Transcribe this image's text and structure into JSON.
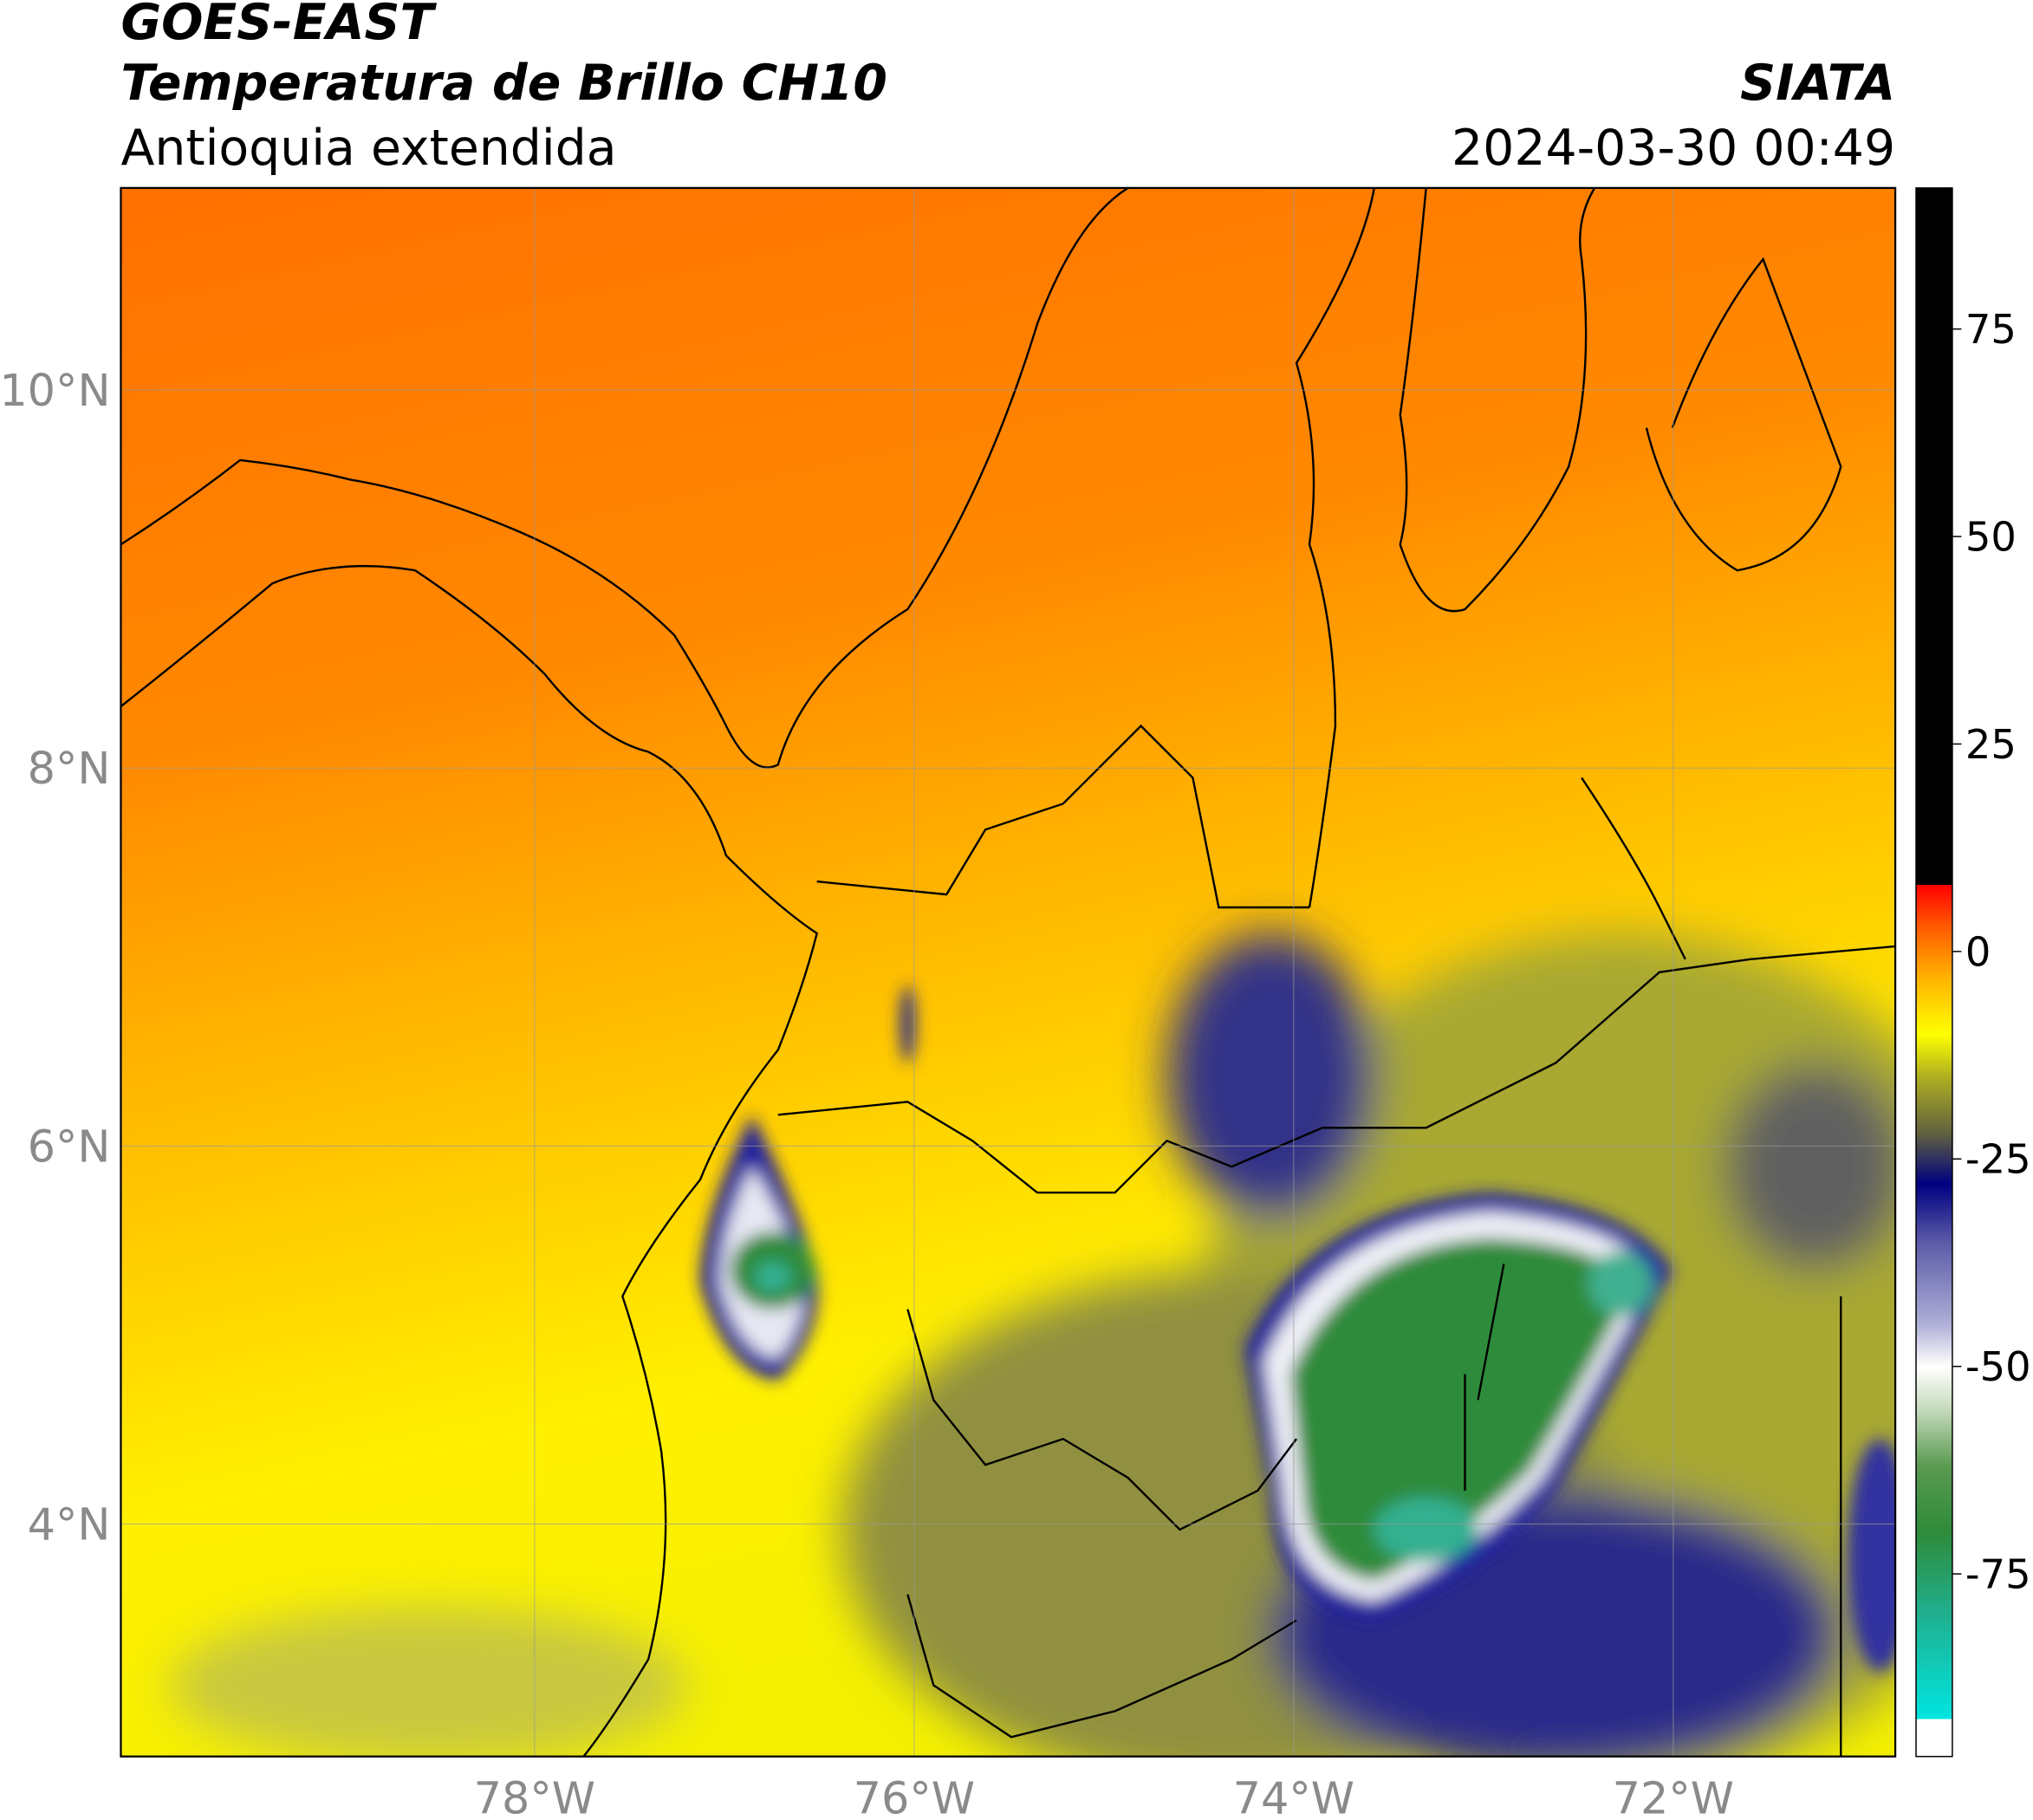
{
  "header": {
    "title": "GOES-EAST",
    "subtitle": "Temperatura de Brillo CH10",
    "region": "Antioquia extendida",
    "source": "SIATA",
    "timestamp": "2024-03-30 00:49"
  },
  "map": {
    "xlim": [
      -80.18,
      -70.83
    ],
    "ylim": [
      2.77,
      11.07
    ],
    "xticks": [
      {
        "value": -78,
        "label": "78°W"
      },
      {
        "value": -76,
        "label": "76°W"
      },
      {
        "value": -74,
        "label": "74°W"
      },
      {
        "value": -72,
        "label": "72°W"
      }
    ],
    "yticks": [
      {
        "value": 10,
        "label": "10°N"
      },
      {
        "value": 8,
        "label": "8°N"
      },
      {
        "value": 6,
        "label": "6°N"
      },
      {
        "value": 4,
        "label": "4°N"
      }
    ],
    "grid": true
  },
  "colorbar": {
    "lim": [
      -97,
      92
    ],
    "ticks": [
      75,
      50,
      25,
      0,
      -25,
      -50,
      -75
    ],
    "stops": [
      {
        "value": 92,
        "color": "#000000"
      },
      {
        "value": 8,
        "color": "#000000"
      },
      {
        "value": 8,
        "color": "#ff0000"
      },
      {
        "value": 3,
        "color": "#ff5a00"
      },
      {
        "value": -3,
        "color": "#ffb000"
      },
      {
        "value": -10,
        "color": "#ffff00"
      },
      {
        "value": -15,
        "color": "#b0b020"
      },
      {
        "value": -22,
        "color": "#606040"
      },
      {
        "value": -28,
        "color": "#000080"
      },
      {
        "value": -35,
        "color": "#5a5aa8"
      },
      {
        "value": -45,
        "color": "#b0b0d8"
      },
      {
        "value": -50,
        "color": "#ffffff"
      },
      {
        "value": -55,
        "color": "#c8dcc0"
      },
      {
        "value": -62,
        "color": "#5a9a50"
      },
      {
        "value": -70,
        "color": "#2e8b3a"
      },
      {
        "value": -80,
        "color": "#20b090"
      },
      {
        "value": -92.5,
        "color": "#00e5e0"
      },
      {
        "value": -92.5,
        "color": "#ffffff"
      },
      {
        "value": -97,
        "color": "#ffffff"
      }
    ]
  }
}
